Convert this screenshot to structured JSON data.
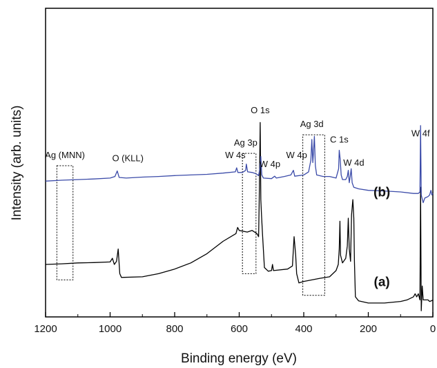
{
  "chart_data": {
    "type": "line",
    "title": "",
    "xlabel": "Binding energy (eV)",
    "ylabel": "Intensity (arb. units)",
    "xlim": [
      1200,
      0
    ],
    "x_reversed": true,
    "ylim": [
      0,
      100
    ],
    "y_ticks_shown": false,
    "xticks": [
      1200,
      1000,
      800,
      600,
      400,
      200,
      0
    ],
    "xtick_labels": [
      "1200",
      "1000",
      "800",
      "600",
      "400",
      "200",
      "0"
    ],
    "grid": false,
    "series": [
      {
        "name": "(a)",
        "color": "#000000",
        "points": [
          [
            1200,
            17
          ],
          [
            1150,
            17.2
          ],
          [
            1100,
            17.5
          ],
          [
            1050,
            17.6
          ],
          [
            1000,
            17.8
          ],
          [
            993,
            19
          ],
          [
            987,
            17
          ],
          [
            980,
            18
          ],
          [
            975,
            22
          ],
          [
            970,
            14
          ],
          [
            965,
            12.8
          ],
          [
            900,
            13
          ],
          [
            850,
            14
          ],
          [
            800,
            15.5
          ],
          [
            750,
            17.5
          ],
          [
            700,
            20.5
          ],
          [
            650,
            24.5
          ],
          [
            610,
            27
          ],
          [
            605,
            29
          ],
          [
            600,
            28
          ],
          [
            575,
            27.5
          ],
          [
            560,
            28
          ],
          [
            545,
            27
          ],
          [
            540,
            26
          ],
          [
            538,
            38
          ],
          [
            535,
            63
          ],
          [
            533,
            38
          ],
          [
            531,
            33
          ],
          [
            528,
            27
          ],
          [
            522,
            16
          ],
          [
            510,
            14.8
          ],
          [
            500,
            15
          ],
          [
            497,
            17
          ],
          [
            494,
            15
          ],
          [
            450,
            15.5
          ],
          [
            435,
            16.5
          ],
          [
            430,
            26
          ],
          [
            425,
            20
          ],
          [
            422,
            14
          ],
          [
            415,
            11
          ],
          [
            400,
            11.5
          ],
          [
            350,
            12.5
          ],
          [
            320,
            13
          ],
          [
            300,
            15
          ],
          [
            293,
            17
          ],
          [
            290,
            22
          ],
          [
            288,
            31
          ],
          [
            286,
            20
          ],
          [
            280,
            17.5
          ],
          [
            270,
            19
          ],
          [
            265,
            23
          ],
          [
            262,
            32
          ],
          [
            259,
            22
          ],
          [
            255,
            18
          ],
          [
            252,
            33
          ],
          [
            248,
            38
          ],
          [
            245,
            32
          ],
          [
            243,
            18
          ],
          [
            240,
            6.5
          ],
          [
            230,
            5.2
          ],
          [
            200,
            4.5
          ],
          [
            150,
            4.5
          ],
          [
            100,
            5
          ],
          [
            80,
            5.5
          ],
          [
            60,
            6.5
          ],
          [
            55,
            7.5
          ],
          [
            50,
            6.5
          ],
          [
            45,
            7.5
          ],
          [
            40,
            5.5
          ],
          [
            38,
            42
          ],
          [
            36,
            2
          ],
          [
            33,
            10
          ],
          [
            30,
            5.5
          ],
          [
            15,
            5.5
          ],
          [
            10,
            5
          ],
          [
            5,
            5.2
          ],
          [
            0,
            5.5
          ]
        ]
      },
      {
        "name": "(b)",
        "color": "#3a4aa8",
        "points": [
          [
            1200,
            44
          ],
          [
            1150,
            44.3
          ],
          [
            1100,
            44.5
          ],
          [
            1050,
            44.7
          ],
          [
            1000,
            45
          ],
          [
            985,
            45.5
          ],
          [
            978,
            47.3
          ],
          [
            972,
            45.2
          ],
          [
            950,
            45
          ],
          [
            900,
            45.3
          ],
          [
            850,
            45.5
          ],
          [
            800,
            45.8
          ],
          [
            750,
            46
          ],
          [
            700,
            46.2
          ],
          [
            650,
            46.6
          ],
          [
            612,
            47
          ],
          [
            608,
            48.3
          ],
          [
            604,
            46.8
          ],
          [
            590,
            46.8
          ],
          [
            580,
            47.5
          ],
          [
            578,
            49.5
          ],
          [
            574,
            47
          ],
          [
            560,
            46.8
          ],
          [
            548,
            46.4
          ],
          [
            540,
            45.8
          ],
          [
            536,
            48
          ],
          [
            533,
            52
          ],
          [
            530,
            46
          ],
          [
            525,
            45
          ],
          [
            500,
            44.8
          ],
          [
            490,
            45.6
          ],
          [
            485,
            45
          ],
          [
            460,
            45.5
          ],
          [
            440,
            46
          ],
          [
            432,
            47.5
          ],
          [
            428,
            45.6
          ],
          [
            400,
            46
          ],
          [
            385,
            47
          ],
          [
            378,
            50.8
          ],
          [
            375,
            57.5
          ],
          [
            372,
            50
          ],
          [
            370,
            53
          ],
          [
            367,
            58.5
          ],
          [
            364,
            49
          ],
          [
            360,
            46
          ],
          [
            340,
            45.5
          ],
          [
            320,
            45.5
          ],
          [
            300,
            45
          ],
          [
            292,
            48
          ],
          [
            290,
            54
          ],
          [
            287,
            51
          ],
          [
            284,
            46
          ],
          [
            280,
            44.5
          ],
          [
            270,
            44.5
          ],
          [
            265,
            45.5
          ],
          [
            262,
            47.5
          ],
          [
            259,
            43.5
          ],
          [
            256,
            45.5
          ],
          [
            253,
            48
          ],
          [
            250,
            43.5
          ],
          [
            245,
            42
          ],
          [
            230,
            41.5
          ],
          [
            200,
            41
          ],
          [
            150,
            40.8
          ],
          [
            100,
            40.5
          ],
          [
            60,
            40
          ],
          [
            45,
            40
          ],
          [
            40,
            40.5
          ],
          [
            38,
            62
          ],
          [
            36,
            39.5
          ],
          [
            30,
            37
          ],
          [
            25,
            38.5
          ],
          [
            15,
            39
          ],
          [
            10,
            39.5
          ],
          [
            6,
            41
          ],
          [
            3,
            39.5
          ],
          [
            0,
            40
          ]
        ]
      }
    ],
    "annotations": [
      {
        "text": "O 1s",
        "x": 535,
        "y": 66
      },
      {
        "text": "Ag 3d",
        "x": 375,
        "y": 61.5
      },
      {
        "text": "Ag 3p",
        "x": 580,
        "y": 55.5
      },
      {
        "text": "W 4f",
        "x": 38,
        "y": 58.5
      },
      {
        "text": "C 1s",
        "x": 290,
        "y": 56.5
      },
      {
        "text": "Ag (MNN)",
        "x": 1140,
        "y": 51.5
      },
      {
        "text": "O (KLL)",
        "x": 945,
        "y": 50.5
      },
      {
        "text": "W 4s",
        "x": 612,
        "y": 51.5
      },
      {
        "text": "W 4p",
        "x": 422,
        "y": 51.5
      },
      {
        "text": "W 4p",
        "x": 505,
        "y": 48.5
      },
      {
        "text": "W 4d",
        "x": 245,
        "y": 49
      }
    ],
    "boxes": [
      {
        "name": "ag-mnn-box",
        "x": [
          1165,
          1115
        ],
        "y": [
          12,
          49
        ]
      },
      {
        "name": "ag-3p-box",
        "x": [
          590,
          548
        ],
        "y": [
          14,
          53
        ]
      },
      {
        "name": "ag-3d-box",
        "x": [
          403,
          335
        ],
        "y": [
          7,
          59
        ]
      }
    ],
    "curve_labels": [
      {
        "text": "(b)",
        "x": 158,
        "y": 39
      },
      {
        "text": "(a)",
        "x": 158,
        "y": 10
      }
    ]
  }
}
